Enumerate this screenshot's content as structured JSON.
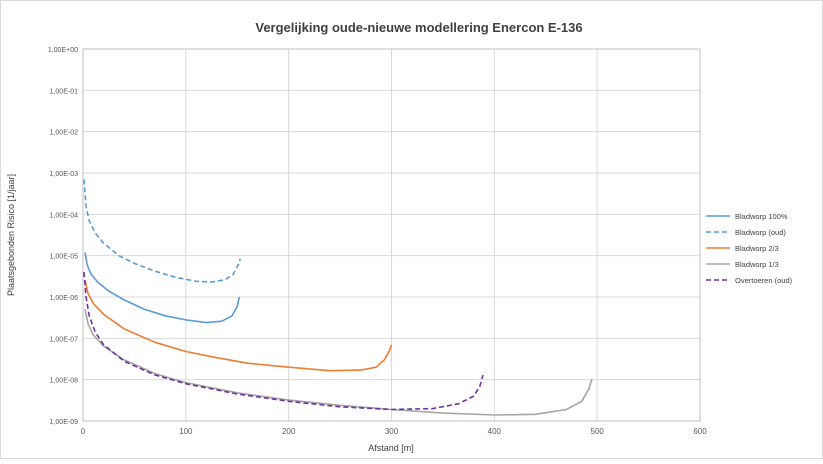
{
  "chart_data": {
    "type": "line",
    "title": "Vergelijking oude-nieuwe modellering Enercon E-136",
    "xlabel": "Afstand [m]",
    "ylabel": "Plaatsgebonden Risico [1/jaar]",
    "xlim": [
      0,
      600
    ],
    "x_ticks": [
      "0",
      "100",
      "200",
      "300",
      "400",
      "500",
      "600"
    ],
    "ylim": [
      1e-09,
      1
    ],
    "y_scale": "log",
    "y_ticks": [
      "1,00E+00",
      "1,00E-01",
      "1,00E-02",
      "1,00E-03",
      "1,00E-04",
      "1,00E-05",
      "1,00E-06",
      "1,00E-07",
      "1,00E-08",
      "1,00E-09"
    ],
    "grid": true,
    "legend_position": "right",
    "series": [
      {
        "name": "Bladworp 100%",
        "color": "#5b9bd5",
        "style": "solid",
        "points": [
          [
            2,
            1.2e-05
          ],
          [
            4,
            6e-06
          ],
          [
            8,
            3.5e-06
          ],
          [
            15,
            2.2e-06
          ],
          [
            25,
            1.4e-06
          ],
          [
            40,
            8.5e-07
          ],
          [
            60,
            5e-07
          ],
          [
            80,
            3.5e-07
          ],
          [
            100,
            2.8e-07
          ],
          [
            120,
            2.4e-07
          ],
          [
            135,
            2.6e-07
          ],
          [
            145,
            3.5e-07
          ],
          [
            150,
            6e-07
          ],
          [
            152,
            1e-06
          ]
        ]
      },
      {
        "name": "Bladworp (oud)",
        "color": "#5b9bd5",
        "style": "dashed",
        "points": [
          [
            1,
            0.0007
          ],
          [
            3,
            0.00015
          ],
          [
            6,
            7e-05
          ],
          [
            12,
            3.5e-05
          ],
          [
            20,
            2e-05
          ],
          [
            35,
            1e-05
          ],
          [
            50,
            6.5e-06
          ],
          [
            70,
            4.2e-06
          ],
          [
            90,
            3e-06
          ],
          [
            110,
            2.4e-06
          ],
          [
            125,
            2.3e-06
          ],
          [
            138,
            2.6e-06
          ],
          [
            146,
            3.5e-06
          ],
          [
            151,
            6e-06
          ],
          [
            153,
            8.5e-06
          ]
        ]
      },
      {
        "name": "Bladworp 2/3",
        "color": "#ed7d31",
        "style": "solid",
        "points": [
          [
            2,
            2.5e-06
          ],
          [
            5,
            1.2e-06
          ],
          [
            10,
            7e-07
          ],
          [
            20,
            3.8e-07
          ],
          [
            40,
            1.7e-07
          ],
          [
            70,
            8e-08
          ],
          [
            100,
            4.8e-08
          ],
          [
            130,
            3.4e-08
          ],
          [
            160,
            2.5e-08
          ],
          [
            200,
            2e-08
          ],
          [
            240,
            1.65e-08
          ],
          [
            270,
            1.7e-08
          ],
          [
            285,
            2e-08
          ],
          [
            293,
            3e-08
          ],
          [
            298,
            5e-08
          ],
          [
            300,
            7e-08
          ]
        ]
      },
      {
        "name": "Bladworp 1/3",
        "color": "#a5a5a5",
        "style": "solid",
        "points": [
          [
            2,
            5e-07
          ],
          [
            5,
            2.2e-07
          ],
          [
            10,
            1.2e-07
          ],
          [
            20,
            6.5e-08
          ],
          [
            40,
            3e-08
          ],
          [
            70,
            1.4e-08
          ],
          [
            100,
            8.5e-09
          ],
          [
            150,
            4.8e-09
          ],
          [
            200,
            3.2e-09
          ],
          [
            250,
            2.4e-09
          ],
          [
            300,
            1.9e-09
          ],
          [
            350,
            1.55e-09
          ],
          [
            400,
            1.4e-09
          ],
          [
            440,
            1.45e-09
          ],
          [
            470,
            1.9e-09
          ],
          [
            485,
            3e-09
          ],
          [
            492,
            6e-09
          ],
          [
            495,
            1.05e-08
          ]
        ]
      },
      {
        "name": "Overtoeren (oud)",
        "color": "#7030a0",
        "style": "dashed",
        "points": [
          [
            1,
            4e-06
          ],
          [
            3,
            1e-06
          ],
          [
            6,
            3.5e-07
          ],
          [
            12,
            1.4e-07
          ],
          [
            20,
            7e-08
          ],
          [
            40,
            2.8e-08
          ],
          [
            70,
            1.3e-08
          ],
          [
            100,
            8e-09
          ],
          [
            150,
            4.5e-09
          ],
          [
            200,
            3e-09
          ],
          [
            250,
            2.2e-09
          ],
          [
            300,
            1.9e-09
          ],
          [
            340,
            2e-09
          ],
          [
            365,
            2.6e-09
          ],
          [
            380,
            4e-09
          ],
          [
            386,
            7e-09
          ],
          [
            389,
            1.3e-08
          ]
        ]
      }
    ]
  }
}
